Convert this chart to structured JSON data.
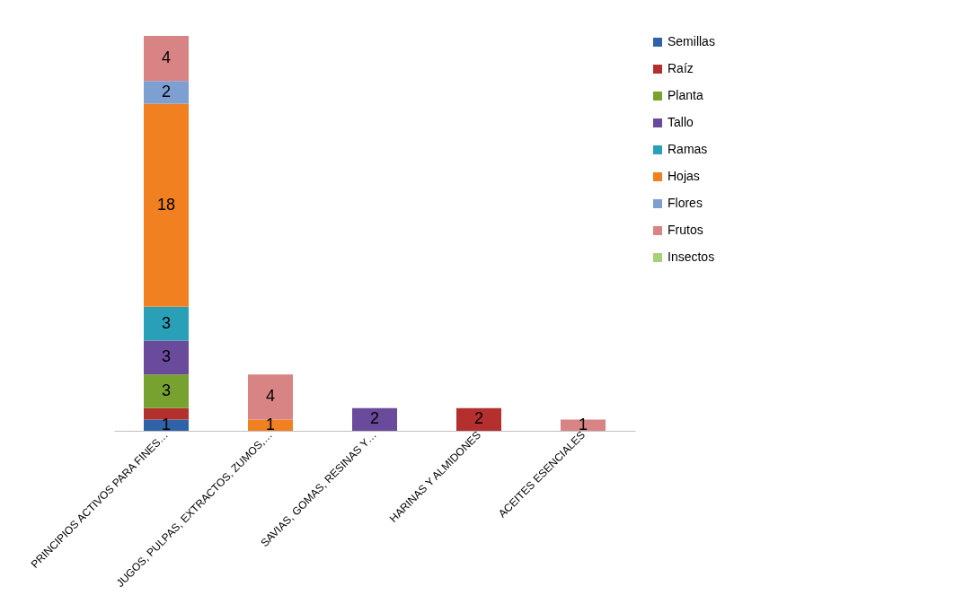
{
  "chart_data": {
    "type": "bar",
    "stacked": true,
    "legend": "right",
    "grid": false,
    "categories": [
      "PRINCIPIOS ACTIVOS PARA FINES…",
      "JUGOS, PULPAS, EXTRACTOS, ZUMOS,…",
      "SAVIAS, GOMAS, RESINAS Y…",
      "HARINAS Y ALMIDONES",
      "ACEITES ESENCIALES"
    ],
    "series": [
      {
        "name": "Semillas",
        "color": "#2f62a6",
        "values": [
          1,
          null,
          null,
          null,
          null
        ],
        "value_labels": [
          "1",
          null,
          null,
          null,
          null
        ]
      },
      {
        "name": "Raíz",
        "color": "#b3302e",
        "values": [
          1,
          null,
          null,
          2,
          null
        ],
        "value_labels": [
          null,
          null,
          null,
          "2",
          null
        ]
      },
      {
        "name": "Planta",
        "color": "#78a22f",
        "values": [
          3,
          null,
          null,
          null,
          null
        ],
        "value_labels": [
          "3",
          null,
          null,
          null,
          null
        ]
      },
      {
        "name": "Tallo",
        "color": "#6a4a9a",
        "values": [
          3,
          null,
          2,
          null,
          null
        ],
        "value_labels": [
          "3",
          null,
          "2",
          null,
          null
        ]
      },
      {
        "name": "Ramas",
        "color": "#2aa0b8",
        "values": [
          3,
          null,
          null,
          null,
          null
        ],
        "value_labels": [
          "3",
          null,
          null,
          null,
          null
        ]
      },
      {
        "name": "Hojas",
        "color": "#f08020",
        "values": [
          18,
          1,
          null,
          null,
          null
        ],
        "value_labels": [
          "18",
          "1",
          null,
          null,
          null
        ]
      },
      {
        "name": "Flores",
        "color": "#7d9fd2",
        "values": [
          2,
          null,
          null,
          null,
          null
        ],
        "value_labels": [
          "2",
          null,
          null,
          null,
          null
        ]
      },
      {
        "name": "Frutos",
        "color": "#d88484",
        "values": [
          4,
          4,
          null,
          null,
          1
        ],
        "value_labels": [
          "4",
          "4",
          null,
          null,
          "1"
        ]
      },
      {
        "name": "Insectos",
        "color": "#a9cf7a",
        "values": [
          null,
          null,
          null,
          null,
          null
        ],
        "value_labels": [
          null,
          null,
          null,
          null,
          null
        ]
      }
    ]
  }
}
